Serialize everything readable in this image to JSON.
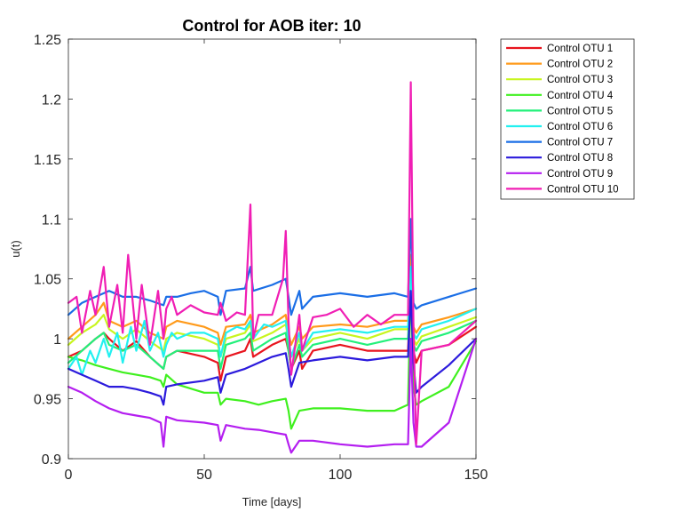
{
  "chart_data": {
    "type": "line",
    "title": "Control for AOB iter: 10",
    "xlabel": "Time [days]",
    "ylabel": "u(t)",
    "xlim": [
      0,
      150
    ],
    "ylim": [
      0.9,
      1.25
    ],
    "xticks": [
      0,
      50,
      100,
      150
    ],
    "xtick_labels": [
      "0",
      "50",
      "100",
      "150"
    ],
    "yticks": [
      0.9,
      0.95,
      1,
      1.05,
      1.1,
      1.15,
      1.2,
      1.25
    ],
    "ytick_labels": [
      "0.9",
      "0.95",
      "1",
      "1.05",
      "1.1",
      "1.15",
      "1.2",
      "1.25"
    ],
    "grid": false,
    "legend_position": "outside-top-right",
    "series": [
      {
        "name": "Control OTU 1",
        "color": "#e8141e",
        "x": [
          0,
          5,
          10,
          13,
          15,
          20,
          25,
          30,
          35,
          36,
          40,
          50,
          55,
          56,
          58,
          65,
          67,
          68,
          75,
          80,
          81,
          82,
          85,
          86,
          90,
          100,
          110,
          120,
          125,
          126,
          127,
          128,
          130,
          140,
          150
        ],
        "y": [
          0.985,
          0.99,
          1.0,
          1.005,
          1.0,
          0.99,
          0.998,
          0.985,
          0.975,
          0.985,
          0.99,
          0.985,
          0.98,
          0.965,
          0.985,
          0.99,
          1.0,
          0.985,
          0.995,
          1.0,
          0.99,
          0.975,
          0.99,
          0.975,
          0.99,
          0.995,
          0.99,
          0.99,
          0.99,
          1.05,
          0.99,
          0.98,
          0.99,
          0.995,
          1.01
        ]
      },
      {
        "name": "Control OTU 2",
        "color": "#ff9a1a",
        "x": [
          0,
          5,
          10,
          13,
          15,
          20,
          25,
          30,
          35,
          36,
          40,
          50,
          55,
          56,
          58,
          65,
          67,
          68,
          75,
          80,
          81,
          82,
          85,
          86,
          90,
          100,
          110,
          120,
          125,
          126,
          127,
          128,
          130,
          140,
          150
        ],
        "y": [
          1.0,
          1.01,
          1.02,
          1.03,
          1.015,
          1.01,
          1.015,
          1.005,
          1.0,
          1.01,
          1.015,
          1.01,
          1.005,
          0.995,
          1.01,
          1.012,
          1.02,
          1.005,
          1.012,
          1.02,
          1.005,
          0.995,
          1.01,
          1.0,
          1.01,
          1.012,
          1.01,
          1.015,
          1.015,
          1.07,
          1.01,
          1.005,
          1.012,
          1.018,
          1.025
        ]
      },
      {
        "name": "Control OTU 3",
        "color": "#c8f51e",
        "x": [
          0,
          5,
          10,
          13,
          15,
          20,
          25,
          30,
          35,
          36,
          40,
          50,
          55,
          56,
          58,
          65,
          67,
          68,
          75,
          80,
          81,
          82,
          85,
          86,
          90,
          100,
          110,
          120,
          125,
          126,
          127,
          128,
          130,
          140,
          150
        ],
        "y": [
          0.995,
          1.005,
          1.012,
          1.02,
          1.008,
          1.0,
          1.008,
          0.998,
          0.99,
          1.0,
          1.005,
          1.0,
          0.995,
          0.985,
          1.0,
          1.005,
          1.012,
          0.998,
          1.005,
          1.012,
          0.998,
          0.985,
          1.0,
          0.99,
          1.0,
          1.005,
          1.0,
          1.008,
          1.008,
          1.06,
          1.0,
          0.995,
          1.002,
          1.01,
          1.018
        ]
      },
      {
        "name": "Control OTU 4",
        "color": "#3ff01e",
        "x": [
          0,
          5,
          10,
          15,
          20,
          25,
          30,
          34,
          35,
          36,
          40,
          50,
          55,
          56,
          58,
          65,
          70,
          75,
          80,
          81,
          82,
          85,
          90,
          100,
          110,
          120,
          125,
          126,
          127,
          128,
          130,
          140,
          150
        ],
        "y": [
          0.985,
          0.982,
          0.978,
          0.975,
          0.972,
          0.97,
          0.968,
          0.965,
          0.96,
          0.97,
          0.962,
          0.955,
          0.955,
          0.945,
          0.95,
          0.948,
          0.945,
          0.948,
          0.95,
          0.94,
          0.925,
          0.94,
          0.942,
          0.942,
          0.94,
          0.94,
          0.945,
          1.05,
          0.96,
          0.945,
          0.948,
          0.96,
          0.998
        ]
      },
      {
        "name": "Control OTU 5",
        "color": "#22f07a",
        "x": [
          0,
          5,
          10,
          13,
          15,
          20,
          25,
          30,
          35,
          36,
          40,
          50,
          55,
          56,
          58,
          65,
          67,
          68,
          75,
          80,
          81,
          82,
          85,
          86,
          90,
          100,
          110,
          120,
          125,
          126,
          127,
          128,
          130,
          140,
          150
        ],
        "y": [
          0.98,
          0.99,
          1.0,
          1.005,
          0.995,
          0.99,
          0.995,
          0.985,
          0.975,
          0.985,
          0.99,
          0.99,
          0.99,
          0.975,
          0.995,
          1.0,
          1.005,
          0.99,
          1.0,
          1.005,
          0.99,
          0.975,
          0.995,
          0.985,
          0.995,
          1.0,
          0.995,
          1.0,
          1.0,
          1.05,
          0.995,
          0.99,
          0.998,
          1.005,
          1.015
        ]
      },
      {
        "name": "Control OTU 6",
        "color": "#22f0f0",
        "x": [
          0,
          3,
          5,
          8,
          10,
          13,
          15,
          18,
          20,
          23,
          25,
          28,
          30,
          33,
          35,
          36,
          38,
          40,
          45,
          50,
          55,
          56,
          58,
          62,
          65,
          67,
          68,
          72,
          75,
          80,
          81,
          82,
          85,
          86,
          90,
          100,
          110,
          120,
          125,
          126,
          127,
          128,
          130,
          140,
          150
        ],
        "y": [
          0.975,
          0.985,
          0.97,
          0.99,
          0.98,
          1.0,
          0.985,
          1.005,
          0.98,
          1.01,
          0.99,
          1.015,
          0.99,
          1.005,
          0.985,
          0.995,
          1.005,
          1.0,
          1.005,
          1.005,
          1.0,
          0.985,
          1.005,
          1.01,
          1.008,
          1.015,
          1.0,
          1.012,
          1.01,
          1.015,
          1.0,
          0.985,
          1.005,
          0.99,
          1.005,
          1.008,
          1.005,
          1.01,
          1.01,
          1.06,
          1.005,
          1.0,
          1.008,
          1.015,
          1.025
        ]
      },
      {
        "name": "Control OTU 7",
        "color": "#1a6ee6",
        "x": [
          0,
          5,
          10,
          15,
          20,
          25,
          30,
          35,
          36,
          40,
          45,
          50,
          55,
          56,
          58,
          65,
          67,
          68,
          75,
          80,
          81,
          82,
          85,
          86,
          90,
          100,
          110,
          120,
          125,
          126,
          127,
          128,
          130,
          140,
          150
        ],
        "y": [
          1.02,
          1.03,
          1.035,
          1.04,
          1.035,
          1.035,
          1.032,
          1.028,
          1.035,
          1.035,
          1.038,
          1.04,
          1.035,
          1.02,
          1.04,
          1.042,
          1.06,
          1.04,
          1.045,
          1.05,
          1.035,
          1.02,
          1.04,
          1.025,
          1.035,
          1.038,
          1.035,
          1.038,
          1.035,
          1.1,
          1.03,
          1.025,
          1.028,
          1.035,
          1.042
        ]
      },
      {
        "name": "Control OTU 8",
        "color": "#2b1adc",
        "x": [
          0,
          5,
          10,
          15,
          20,
          25,
          30,
          34,
          35,
          36,
          40,
          50,
          55,
          56,
          58,
          65,
          70,
          75,
          80,
          81,
          82,
          85,
          90,
          100,
          110,
          120,
          125,
          126,
          127,
          128,
          130,
          140,
          150
        ],
        "y": [
          0.975,
          0.97,
          0.965,
          0.96,
          0.96,
          0.958,
          0.955,
          0.952,
          0.945,
          0.96,
          0.962,
          0.965,
          0.968,
          0.955,
          0.97,
          0.975,
          0.98,
          0.985,
          0.988,
          0.975,
          0.96,
          0.98,
          0.982,
          0.985,
          0.982,
          0.985,
          0.985,
          1.04,
          0.98,
          0.955,
          0.96,
          0.978,
          1.0
        ]
      },
      {
        "name": "Control OTU 9",
        "color": "#b41ef0",
        "x": [
          0,
          5,
          10,
          15,
          20,
          25,
          30,
          34,
          35,
          36,
          40,
          50,
          55,
          56,
          58,
          65,
          70,
          75,
          80,
          81,
          82,
          85,
          90,
          100,
          110,
          120,
          125,
          126,
          127,
          128,
          130,
          140,
          150
        ],
        "y": [
          0.96,
          0.955,
          0.948,
          0.942,
          0.938,
          0.936,
          0.934,
          0.93,
          0.91,
          0.935,
          0.932,
          0.93,
          0.928,
          0.915,
          0.928,
          0.925,
          0.924,
          0.922,
          0.92,
          0.912,
          0.905,
          0.915,
          0.915,
          0.912,
          0.91,
          0.912,
          0.912,
          1.0,
          0.93,
          0.91,
          0.91,
          0.93,
          1.0
        ]
      },
      {
        "name": "Control OTU 10",
        "color": "#f01eb4",
        "x": [
          0,
          3,
          5,
          8,
          10,
          13,
          15,
          18,
          20,
          22,
          25,
          27,
          30,
          33,
          35,
          36,
          38,
          40,
          45,
          50,
          55,
          56,
          58,
          62,
          65,
          67,
          68,
          70,
          75,
          79,
          80,
          81,
          82,
          85,
          86,
          90,
          95,
          100,
          105,
          110,
          115,
          120,
          125,
          126,
          127,
          128,
          130,
          140,
          150
        ],
        "y": [
          1.03,
          1.035,
          1.005,
          1.04,
          1.02,
          1.06,
          1.01,
          1.045,
          1.005,
          1.07,
          1.0,
          1.045,
          0.995,
          1.04,
          1.0,
          1.025,
          1.035,
          1.02,
          1.028,
          1.022,
          1.02,
          1.03,
          1.015,
          1.022,
          1.02,
          1.112,
          1.0,
          1.02,
          1.02,
          1.05,
          1.09,
          1.015,
          0.97,
          1.02,
          0.99,
          1.018,
          1.02,
          1.025,
          1.01,
          1.02,
          1.012,
          1.02,
          1.02,
          1.214,
          1.01,
          0.912,
          0.99,
          0.995,
          1.015
        ]
      }
    ]
  }
}
